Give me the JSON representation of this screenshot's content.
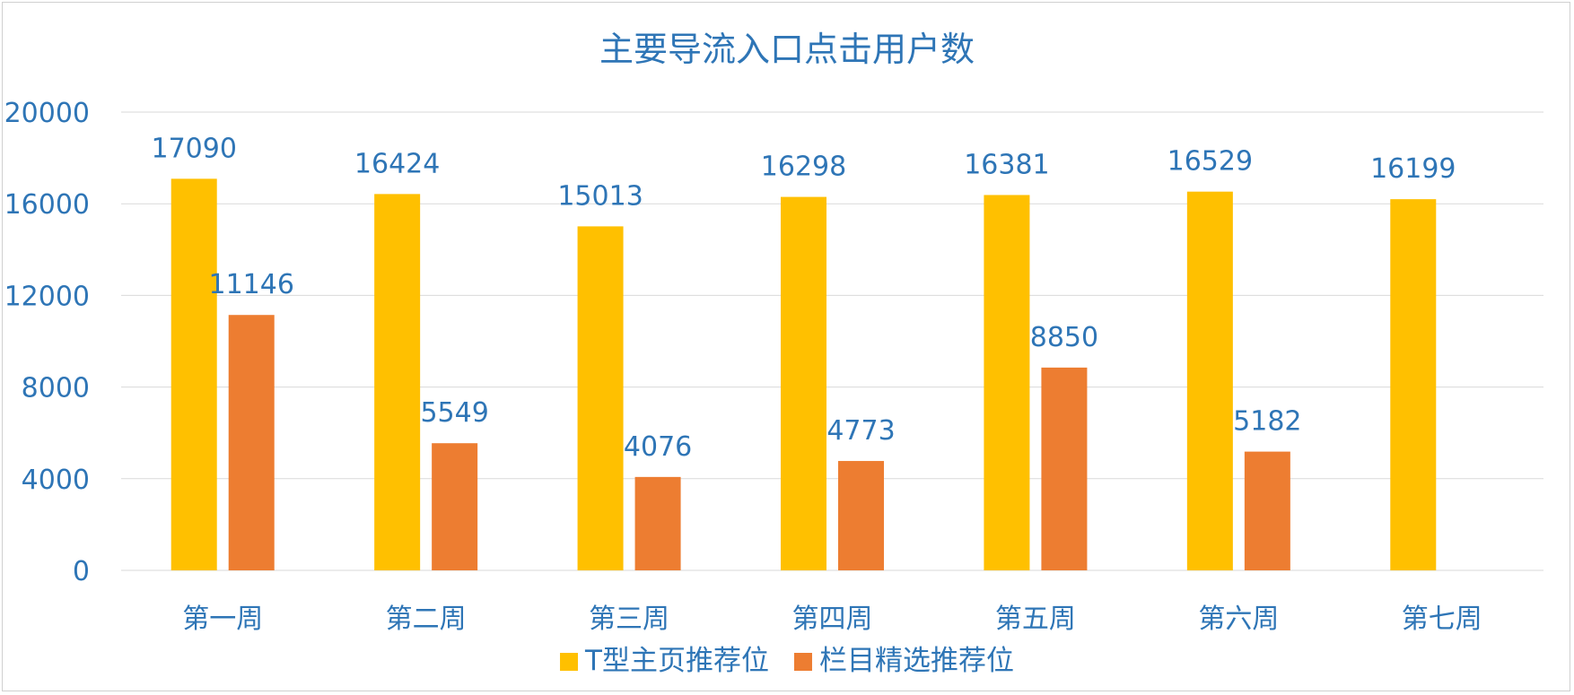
{
  "chart_data": {
    "type": "bar",
    "title": "主要导流入口点击用户数",
    "categories": [
      "第一周",
      "第二周",
      "第三周",
      "第四周",
      "第五周",
      "第六周",
      "第七周"
    ],
    "series": [
      {
        "name": "T型主页推荐位",
        "color": "#ffc000",
        "values": [
          17090,
          16424,
          15013,
          16298,
          16381,
          16529,
          16199
        ]
      },
      {
        "name": "栏目精选推荐位",
        "color": "#ed7d31",
        "values": [
          11146,
          5549,
          4076,
          4773,
          8850,
          5182,
          null
        ]
      }
    ],
    "ylim": [
      0,
      20000
    ],
    "yticks": [
      0,
      4000,
      8000,
      12000,
      16000,
      20000
    ],
    "grid": true,
    "legend_position": "bottom",
    "data_labels": true,
    "xlabel": "",
    "ylabel": ""
  }
}
